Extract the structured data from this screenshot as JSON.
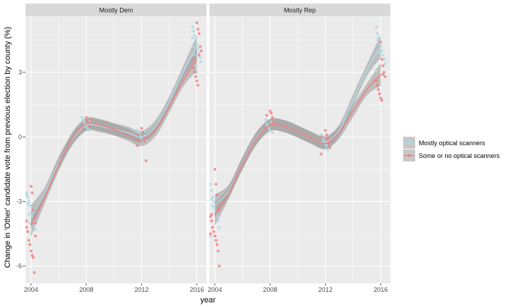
{
  "chart_data": {
    "type": "scatter",
    "xlabel": "year",
    "ylabel": "Change in 'Other' candidate vote from previous election by county (%)",
    "x_ticks": [
      2004,
      2008,
      2012,
      2016
    ],
    "y_ticks": [
      -6,
      -3,
      0,
      3
    ],
    "xlim": [
      2003.6,
      2016.7
    ],
    "ylim": [
      -6.8,
      5.6
    ],
    "grid": true,
    "legend_position": "right",
    "colors": {
      "panel_bg": "#ebebeb",
      "grid": "#ffffff",
      "strip_bg": "#d9d9d9",
      "ribbon": "#999999",
      "Mostly optical scanners": "#add8e6",
      "Some or no optical scanners": "#f08080"
    },
    "legend": [
      "Mostly optical scanners",
      "Some or no optical scanners"
    ],
    "panels": [
      {
        "title": "Mostly Dem",
        "series": [
          {
            "name": "Mostly optical scanners",
            "smooth": {
              "x": [
                2004,
                2005,
                2006,
                2007,
                2008,
                2009,
                2010,
                2011,
                2012,
                2013,
                2014,
                2015,
                2016
              ],
              "y": [
                -3.7,
                -2.6,
                -1.2,
                -0.1,
                0.55,
                0.5,
                0.35,
                0.2,
                0.0,
                0.5,
                1.6,
                3.0,
                4.2
              ]
            },
            "points": {
              "2004": [
                -2.6,
                -2.8,
                -3.0,
                -3.2,
                -3.5,
                -3.7,
                -3.9,
                -4.1,
                -4.3,
                -2.7,
                -3.1,
                -3.6,
                -4.0,
                -4.5
              ],
              "2008": [
                0.9,
                0.8,
                0.7,
                0.6,
                0.5,
                0.4,
                0.3,
                0.75,
                0.55
              ],
              "2012": [
                0.3,
                0.2,
                0.1,
                0.0,
                -0.1,
                -0.2,
                0.25,
                0.05,
                -0.15
              ],
              "2016": [
                5.1,
                4.9,
                4.7,
                4.5,
                4.3,
                4.1,
                3.9,
                3.7,
                3.5,
                4.6,
                4.2,
                3.8,
                3.3,
                3.0
              ]
            }
          },
          {
            "name": "Some or no optical scanners",
            "smooth": {
              "x": [
                2004,
                2005,
                2006,
                2007,
                2008,
                2009,
                2010,
                2011,
                2012,
                2013,
                2014,
                2015,
                2016
              ],
              "y": [
                -4.1,
                -2.8,
                -1.3,
                -0.05,
                0.6,
                0.55,
                0.35,
                0.1,
                -0.15,
                0.3,
                1.4,
                2.6,
                3.6
              ]
            },
            "points": {
              "2004": [
                -2.3,
                -2.6,
                -3.4,
                -3.8,
                -4.0,
                -4.2,
                -4.4,
                -4.8,
                -5.0,
                -5.3,
                -5.5,
                -5.6,
                -6.3,
                -4.6,
                -3.9
              ],
              "2008": [
                0.9,
                0.7,
                0.6,
                0.5,
                0.8,
                0.4
              ],
              "2012": [
                0.4,
                0.2,
                0.0,
                -0.2,
                -1.1,
                -0.4,
                0.1
              ],
              "2016": [
                5.3,
                5.0,
                4.8,
                4.2,
                4.0,
                3.6,
                3.2,
                3.0,
                2.8,
                2.6,
                2.4,
                3.8
              ]
            }
          }
        ]
      },
      {
        "title": "Mostly Rep",
        "series": [
          {
            "name": "Mostly optical scanners",
            "smooth": {
              "x": [
                2004,
                2005,
                2006,
                2007,
                2008,
                2009,
                2010,
                2011,
                2012,
                2013,
                2014,
                2015,
                2016
              ],
              "y": [
                -3.2,
                -2.5,
                -1.2,
                -0.05,
                0.55,
                0.5,
                0.25,
                -0.05,
                -0.25,
                0.3,
                1.7,
                3.1,
                4.2
              ]
            },
            "points": {
              "2004": [
                -2.2,
                -2.5,
                -2.8,
                -3.0,
                -3.3,
                -3.5,
                -3.7,
                -3.9,
                -4.2,
                -4.6,
                -2.9,
                -3.2
              ],
              "2008": [
                0.8,
                0.6,
                0.5,
                0.4,
                0.3,
                0.7,
                0.2
              ],
              "2012": [
                0.1,
                0.0,
                -0.1,
                -0.2,
                -0.3,
                -0.4,
                -0.6
              ],
              "2016": [
                5.1,
                4.8,
                4.6,
                4.4,
                4.2,
                4.0,
                3.8,
                3.6,
                3.4,
                3.1,
                4.5,
                3.9
              ]
            }
          },
          {
            "name": "Some or no optical scanners",
            "smooth": {
              "x": [
                2004,
                2005,
                2006,
                2007,
                2008,
                2009,
                2010,
                2011,
                2012,
                2013,
                2014,
                2015,
                2016
              ],
              "y": [
                -3.6,
                -2.6,
                -1.25,
                -0.1,
                0.55,
                0.5,
                0.25,
                -0.05,
                -0.3,
                0.2,
                1.2,
                2.2,
                2.9
              ]
            },
            "points": {
              "2004": [
                -1.5,
                -2.2,
                -2.7,
                -3.1,
                -3.4,
                -3.7,
                -3.9,
                -4.2,
                -4.4,
                -4.6,
                -4.8,
                -5.0,
                -5.3,
                -6.0,
                -4.5,
                -3.6
              ],
              "2008": [
                1.2,
                1.1,
                0.9,
                0.7,
                0.6,
                0.4,
                1.0
              ],
              "2012": [
                0.3,
                0.1,
                -0.1,
                -0.3,
                -0.5,
                -0.8,
                0.0
              ],
              "2016": [
                4.4,
                3.6,
                3.3,
                3.0,
                2.8,
                2.6,
                2.4,
                2.2,
                2.0,
                1.8,
                1.7,
                2.9
              ]
            }
          }
        ]
      }
    ]
  }
}
